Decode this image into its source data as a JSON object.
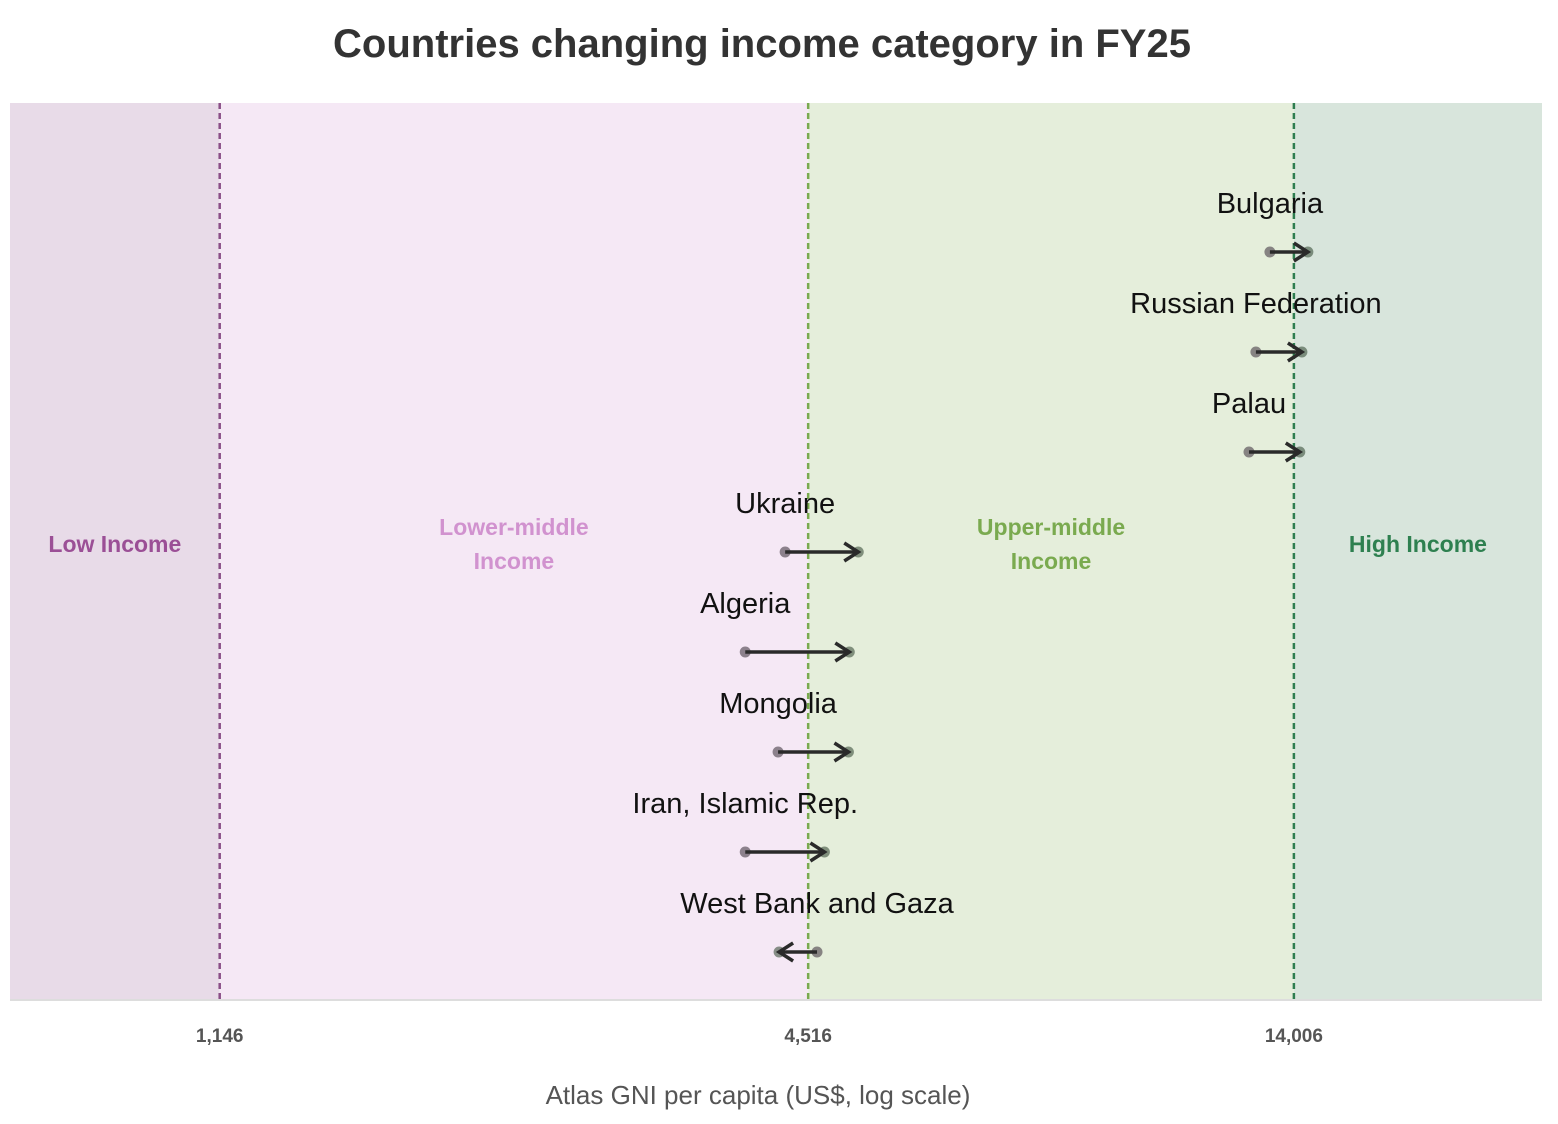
{
  "chart_data": {
    "type": "dumbbell-arrow",
    "title": "Countries changing income category in FY25",
    "xlabel": "Atlas GNI per capita (US$, log scale)",
    "xscale": "log",
    "xlim": [
      703,
      24970
    ],
    "thresholds": [
      {
        "value": 1146,
        "label": "1,146",
        "color": "#8a4f87"
      },
      {
        "value": 4516,
        "label": "4,516",
        "color": "#7aaa4f"
      },
      {
        "value": 14006,
        "label": "14,006",
        "color": "#2e7d4f"
      }
    ],
    "bands": [
      {
        "label": [
          "Low Income"
        ],
        "from": 703,
        "to": 1146,
        "bg": "#e8dbe8",
        "color": "#9b4f96"
      },
      {
        "label": [
          "Lower-middle",
          "Income"
        ],
        "from": 1146,
        "to": 4516,
        "bg": "#f5e8f5",
        "color": "#d192cf"
      },
      {
        "label": [
          "Upper-middle",
          "Income"
        ],
        "from": 4516,
        "to": 14006,
        "bg": "#e5eedb",
        "color": "#7aaa4f"
      },
      {
        "label": [
          "High Income"
        ],
        "from": 14006,
        "to": 24970,
        "bg": "#d8e5dc",
        "color": "#2e8050"
      }
    ],
    "series": [
      {
        "country": "Bulgaria",
        "from": 13245,
        "to": 14470
      },
      {
        "country": "Russian Federation",
        "from": 12820,
        "to": 14270
      },
      {
        "country": "Palau",
        "from": 12615,
        "to": 14200
      },
      {
        "country": "Ukraine",
        "from": 4280,
        "to": 5075
      },
      {
        "country": "Algeria",
        "from": 3900,
        "to": 4970
      },
      {
        "country": "Mongolia",
        "from": 4210,
        "to": 4960
      },
      {
        "country": "Iran, Islamic Rep.",
        "from": 3900,
        "to": 4690
      },
      {
        "country": "West Bank and Gaza",
        "from": 4610,
        "to": 4220
      }
    ]
  }
}
